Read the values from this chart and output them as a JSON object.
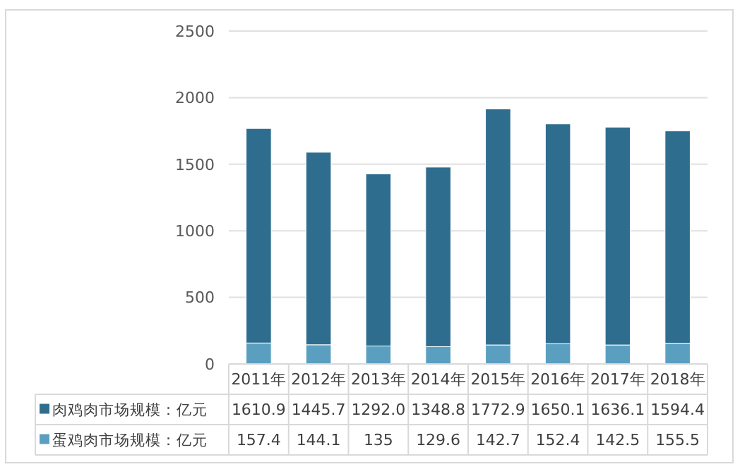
{
  "chart_data": {
    "type": "bar",
    "stacked": true,
    "categories": [
      "2011年",
      "2012年",
      "2013年",
      "2014年",
      "2015年",
      "2016年",
      "2017年",
      "2018年"
    ],
    "series": [
      {
        "name": "蛋鸡肉市场规模：亿元",
        "color": "#5a9fc0",
        "values": [
          157.4,
          144.1,
          135,
          129.6,
          142.7,
          152.4,
          142.5,
          155.5
        ],
        "value_labels": [
          "157.4",
          "144.1",
          "135",
          "129.6",
          "142.7",
          "152.4",
          "142.5",
          "155.5"
        ]
      },
      {
        "name": "肉鸡肉市场规模：亿元",
        "color": "#2f6d8f",
        "values": [
          1610.9,
          1445.7,
          1292.0,
          1348.8,
          1772.9,
          1650.1,
          1636.1,
          1594.4
        ],
        "value_labels": [
          "1610.9",
          "1445.7",
          "1292.0",
          "1348.8",
          "1772.9",
          "1650.1",
          "1636.1",
          "1594.4"
        ]
      }
    ],
    "ylim": [
      0,
      2500
    ],
    "yticks": [
      0,
      500,
      1000,
      1500,
      2000,
      2500
    ],
    "grid": "y",
    "legend": "bottom"
  }
}
